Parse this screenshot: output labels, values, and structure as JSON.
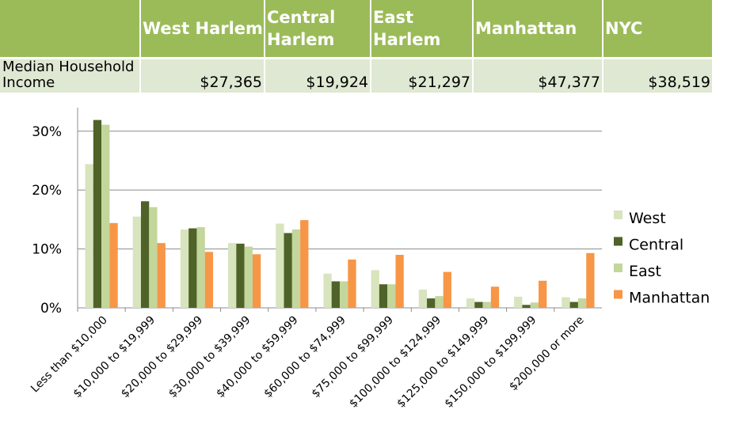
{
  "table": {
    "headers": [
      "",
      "West Harlem",
      "Central Harlem",
      "East Harlem",
      "Manhattan",
      "NYC"
    ],
    "row_label": "Median Household Income",
    "values": [
      "$27,365",
      "$19,924",
      "$21,297",
      "$47,377",
      "$38,519"
    ]
  },
  "chart_data": {
    "type": "bar",
    "categories": [
      "Less than $10,000",
      "$10,000 to $19,999",
      "$20,000 to $29,999",
      "$30,000 to $39,999",
      "$40,000 to $59,999",
      "$60,000 to $74,999",
      "$75,000 to $99,999",
      "$100,000 to $124,999",
      "$125,000 to $149,999",
      "$150,000 to $199,999",
      "$200,000 or more"
    ],
    "series": [
      {
        "name": "West",
        "color": "#d7e4bd",
        "values": [
          24.4,
          15.5,
          13.3,
          11.0,
          14.3,
          5.8,
          6.4,
          3.1,
          1.6,
          1.9,
          1.8
        ]
      },
      {
        "name": "Central",
        "color": "#4f6228",
        "values": [
          31.9,
          18.1,
          13.5,
          10.9,
          12.7,
          4.5,
          4.0,
          1.6,
          1.0,
          0.5,
          1.0
        ]
      },
      {
        "name": "East",
        "color": "#c3d69b",
        "values": [
          31.1,
          17.1,
          13.7,
          10.4,
          13.3,
          4.5,
          4.0,
          2.0,
          1.0,
          0.9,
          1.6
        ]
      },
      {
        "name": "Manhattan",
        "color": "#f79646",
        "values": [
          14.4,
          11.0,
          9.5,
          9.1,
          14.9,
          8.2,
          9.0,
          6.1,
          3.6,
          4.6,
          9.3
        ]
      }
    ],
    "y_ticks": [
      "0%",
      "10%",
      "20%",
      "30%"
    ],
    "ylim": [
      0,
      34
    ],
    "grid": true,
    "legend_position": "right"
  }
}
